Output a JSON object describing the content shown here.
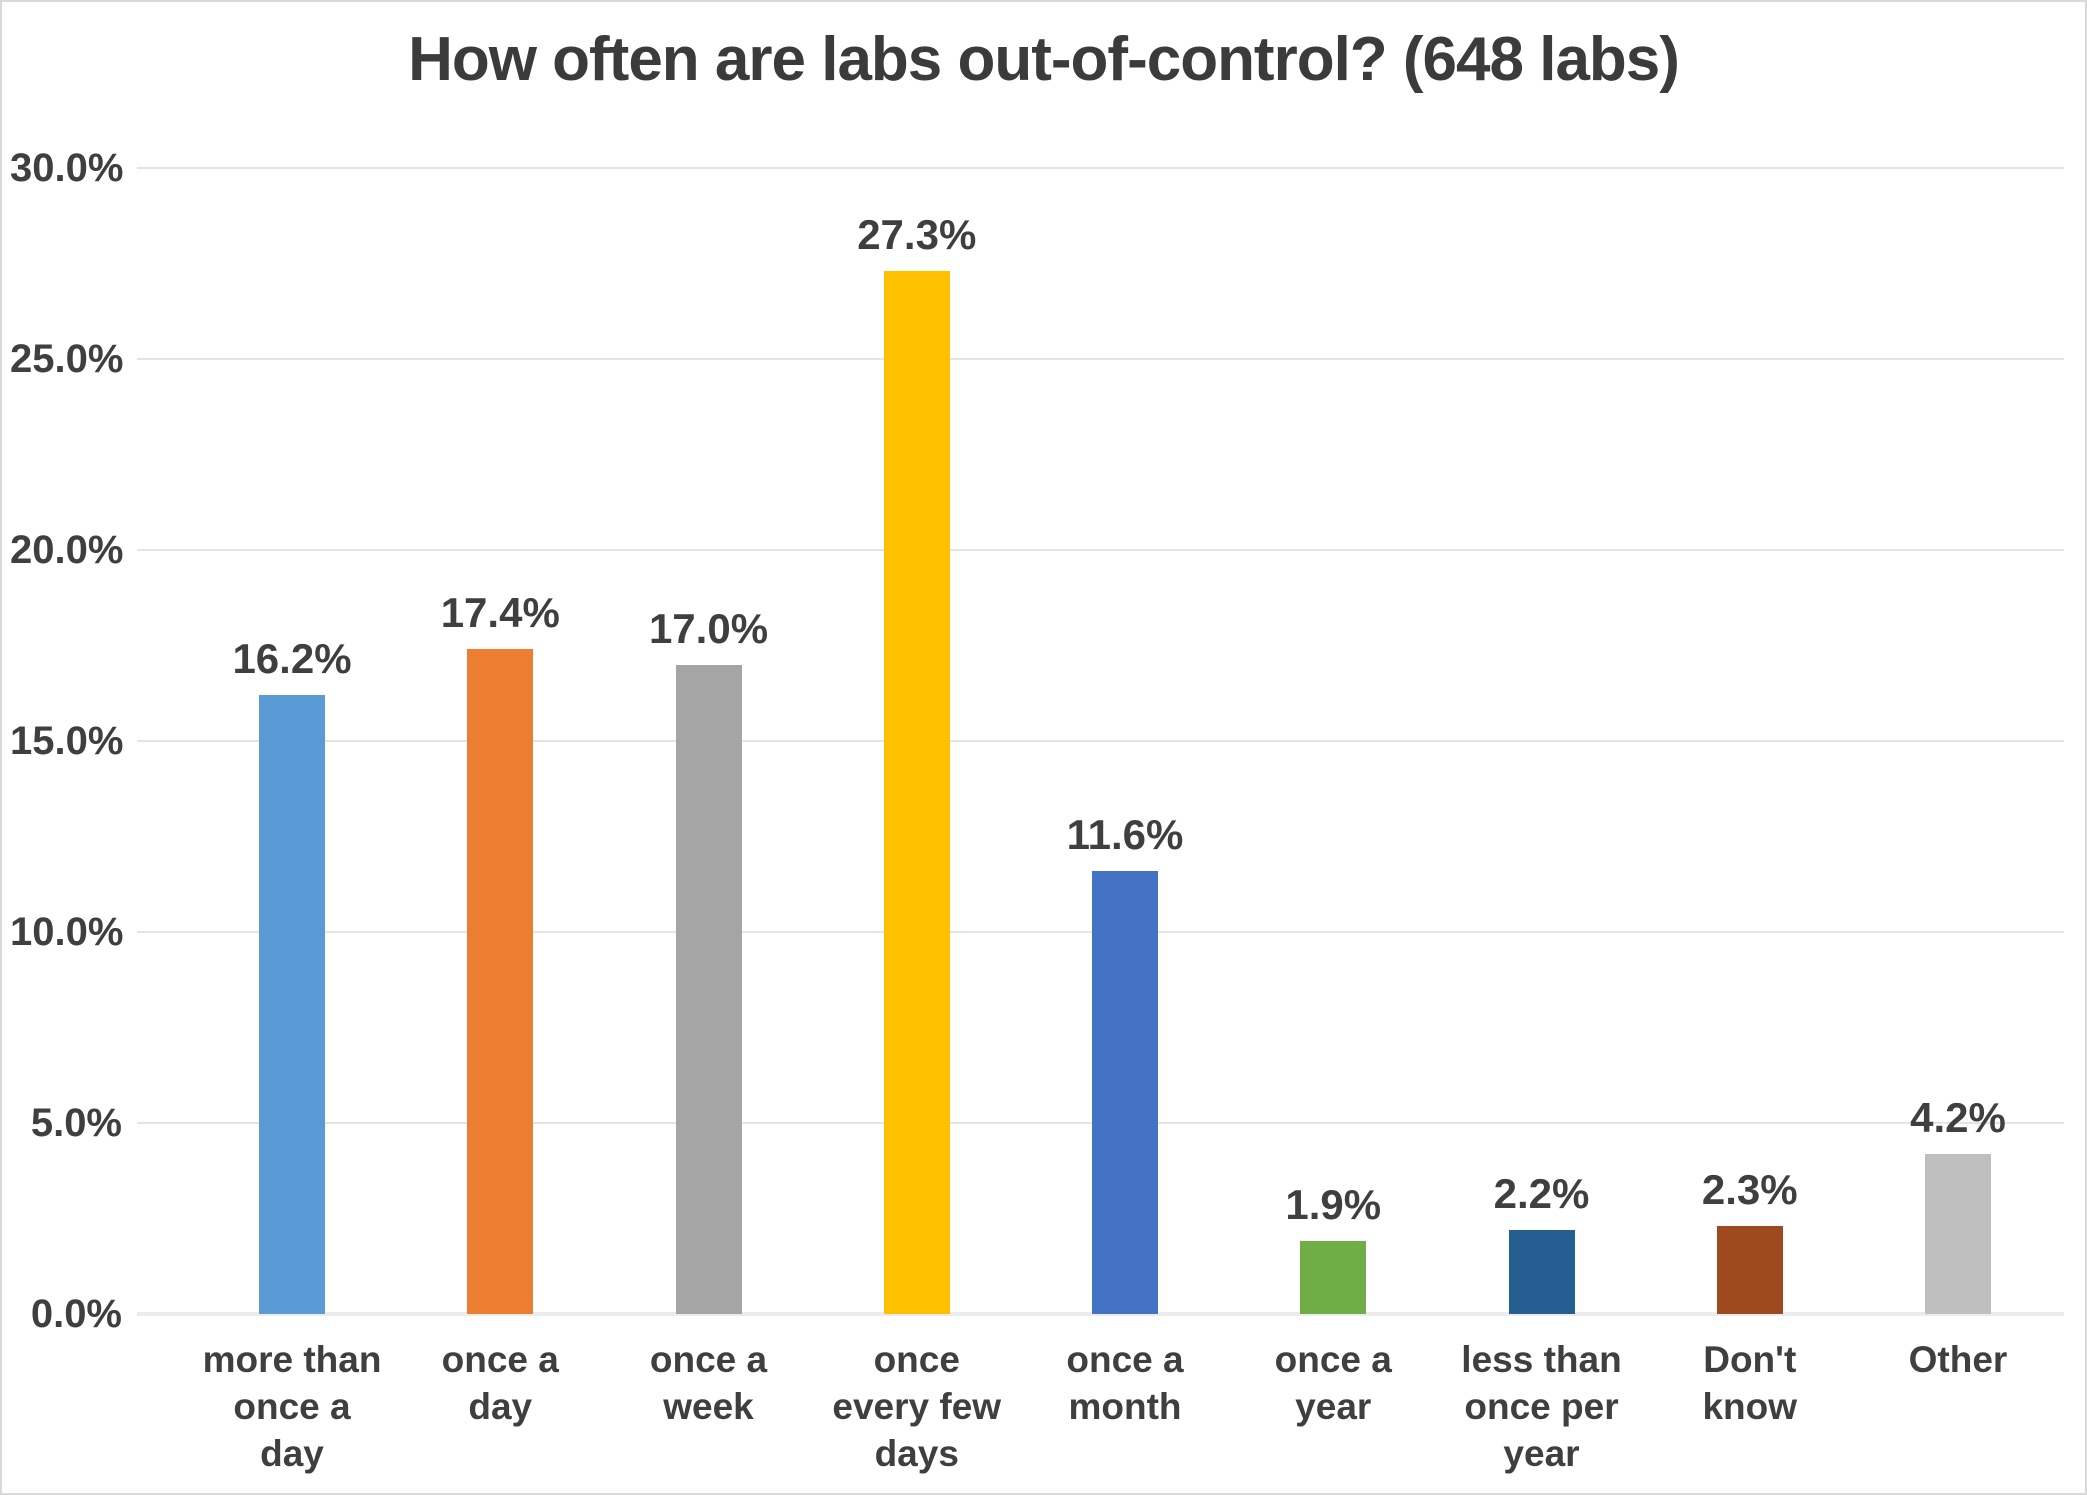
{
  "chart_data": {
    "type": "bar",
    "title": "How often are labs out-of-control? (648 labs)",
    "categories": [
      "more than once a day",
      "once a day",
      "once a week",
      "once every few days",
      "once a month",
      "once a year",
      "less than once per year",
      "Don't know",
      "Other"
    ],
    "category_lines": [
      [
        "more than",
        "once a",
        "day"
      ],
      [
        "once a",
        "day"
      ],
      [
        "once a",
        "week"
      ],
      [
        "once",
        "every few",
        "days"
      ],
      [
        "once a",
        "month"
      ],
      [
        "once a",
        "year"
      ],
      [
        "less than",
        "once per",
        "year"
      ],
      [
        "Don't",
        "know"
      ],
      [
        "Other"
      ]
    ],
    "category_slugs": [
      "more-than-once-a-day",
      "once-a-day",
      "once-a-week",
      "once-every-few-days",
      "once-a-month",
      "once-a-year",
      "less-than-once-per-year",
      "dont-know",
      "other"
    ],
    "values": [
      16.2,
      17.4,
      17.0,
      27.3,
      11.6,
      1.9,
      2.2,
      2.3,
      4.2
    ],
    "data_labels": [
      "16.2%",
      "17.4%",
      "17.0%",
      "27.3%",
      "11.6%",
      "1.9%",
      "2.2%",
      "2.3%",
      "4.2%"
    ],
    "bar_colors": [
      "#5B9BD5",
      "#ED7D31",
      "#A5A5A5",
      "#FFC000",
      "#4472C4",
      "#70AD47",
      "#255E91",
      "#9E4A21",
      "#BFBFBF"
    ],
    "ylim": [
      0,
      30
    ],
    "ytick_step": 5,
    "ytick_labels": [
      "0.0%",
      "5.0%",
      "10.0%",
      "15.0%",
      "20.0%",
      "25.0%",
      "30.0%"
    ],
    "xlabel": "",
    "ylabel": "",
    "grid": true,
    "legend": "none",
    "text_color": "#3F3F3F",
    "grid_color": "#E4E4E4",
    "background_color": "#FFFFFF"
  }
}
